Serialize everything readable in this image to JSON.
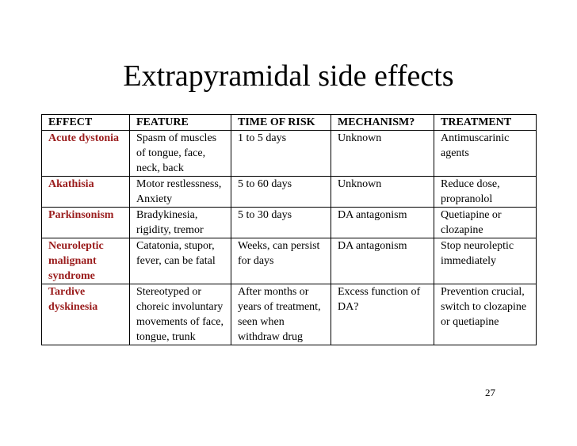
{
  "title": "Extrapyramidal side effects",
  "table": {
    "headers": [
      "EFFECT",
      "FEATURE",
      "TIME OF RISK",
      "MECHANISM?",
      "TREATMENT"
    ],
    "rows": [
      {
        "effect": "Acute dystonia",
        "feature": "Spasm of muscles of tongue, face, neck, back",
        "time_of_risk": "1 to 5 days",
        "mechanism": "Unknown",
        "treatment": "Antimuscarinic agents"
      },
      {
        "effect": "Akathisia",
        "feature": "Motor restlessness, Anxiety",
        "time_of_risk": "5 to 60 days",
        "mechanism": "Unknown",
        "treatment": "Reduce dose, propranolol"
      },
      {
        "effect": "Parkinsonism",
        "feature": "Bradykinesia, rigidity, tremor",
        "time_of_risk": "5 to 30 days",
        "mechanism": "DA antagonism",
        "treatment": "Quetiapine or clozapine"
      },
      {
        "effect": "Neuroleptic malignant syndrome",
        "feature": "Catatonia, stupor, fever, can be fatal",
        "time_of_risk": "Weeks, can persist for days",
        "mechanism": "DA antagonism",
        "treatment": "Stop neuroleptic immediately"
      },
      {
        "effect": "Tardive dyskinesia",
        "feature": "Stereotyped or choreic involuntary movements of face, tongue, trunk",
        "time_of_risk": "After months or years of treatment, seen when withdraw drug",
        "mechanism": "Excess function of DA?",
        "treatment": "Prevention crucial, switch to clozapine or quetiapine"
      }
    ]
  },
  "page_number": "27",
  "colors": {
    "effect_text": "#9a1c1c",
    "border": "#000000",
    "background": "#ffffff"
  }
}
